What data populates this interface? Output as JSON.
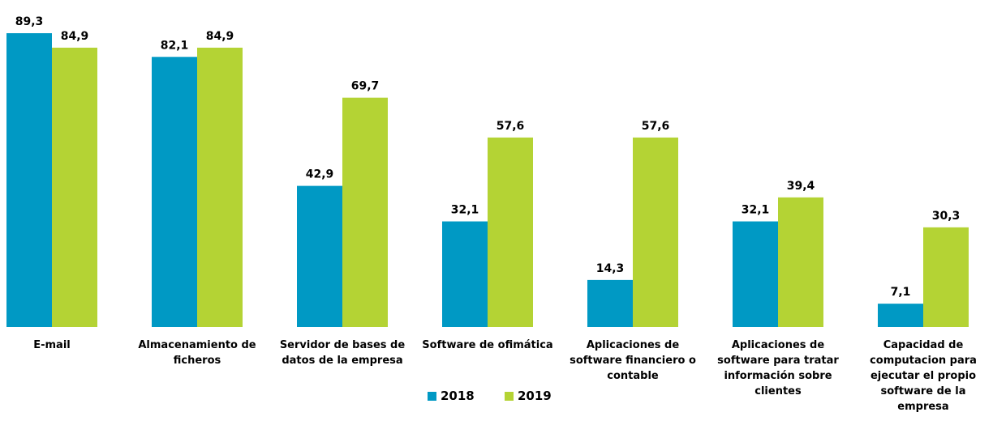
{
  "chart_data": {
    "type": "bar",
    "categories": [
      "E-mail",
      "Almacenamiento de ficheros",
      "Servidor de bases de datos de la empresa",
      "Software de ofimática",
      "Aplicaciones de software financiero o contable",
      "Aplicaciones de software para tratar información sobre clientes",
      "Capacidad de computacion para ejecutar el propio software de la empresa"
    ],
    "series": [
      {
        "name": "2018",
        "color": "#0099c4",
        "values": [
          89.3,
          82.1,
          42.9,
          32.1,
          14.3,
          32.1,
          7.1
        ],
        "value_labels": [
          "89,3",
          "82,1",
          "42,9",
          "32,1",
          "14,3",
          "32,1",
          "7,1"
        ]
      },
      {
        "name": "2019",
        "color": "#b4d334",
        "values": [
          84.9,
          84.9,
          69.7,
          57.6,
          57.6,
          39.4,
          30.3
        ],
        "value_labels": [
          "84,9",
          "84,9",
          "69,7",
          "57,6",
          "57,6",
          "39,4",
          "30,3"
        ]
      }
    ]
  }
}
